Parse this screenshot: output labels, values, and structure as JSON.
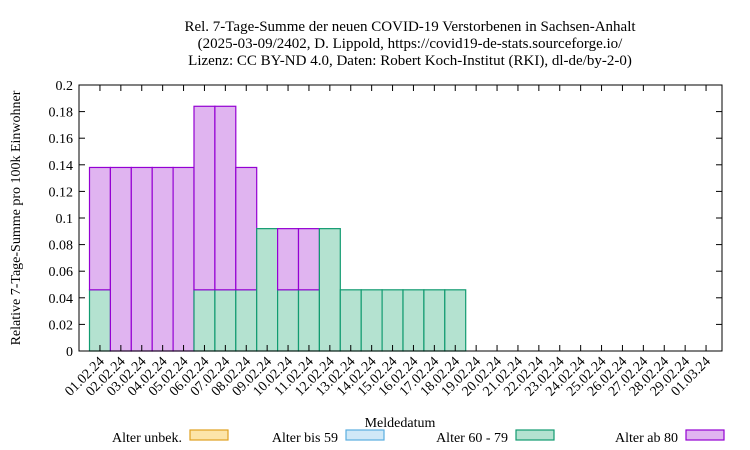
{
  "chart_data": {
    "type": "bar",
    "stacked": true,
    "title_lines": [
      "Rel. 7-Tage-Summe der neuen COVID-19 Verstorbenen in Sachsen-Anhalt",
      "(2025-03-09/2402, D. Lippold, https://covid19-de-stats.sourceforge.io/",
      "Lizenz: CC BY-ND 4.0, Daten: Robert Koch-Institut (RKI), dl-de/by-2-0)"
    ],
    "xlabel": "Meldedatum",
    "ylabel": "Relative 7-Tage-Summe pro 100k Einwohner",
    "ylim": [
      0,
      0.2
    ],
    "yticks": [
      0,
      0.02,
      0.04,
      0.06,
      0.08,
      0.1,
      0.12,
      0.14,
      0.16,
      0.18,
      0.2
    ],
    "ytick_labels": [
      "0",
      "0.02",
      "0.04",
      "0.06",
      "0.08",
      "0.1",
      "0.12",
      "0.14",
      "0.16",
      "0.18",
      "0.2"
    ],
    "grid": false,
    "legend_position": "bottom",
    "categories": [
      "01.02.24",
      "02.02.24",
      "03.02.24",
      "04.02.24",
      "05.02.24",
      "06.02.24",
      "07.02.24",
      "08.02.24",
      "09.02.24",
      "10.02.24",
      "11.02.24",
      "12.02.24",
      "13.02.24",
      "14.02.24",
      "15.02.24",
      "16.02.24",
      "17.02.24",
      "18.02.24",
      "19.02.24",
      "20.02.24",
      "21.02.24",
      "22.02.24",
      "23.02.24",
      "24.02.24",
      "25.02.24",
      "26.02.24",
      "27.02.24",
      "28.02.24",
      "29.02.24",
      "01.03.24"
    ],
    "series": [
      {
        "name": "Alter unbek.",
        "fill": "#fce4a8",
        "stroke": "#e0a020",
        "values": [
          0,
          0,
          0,
          0,
          0,
          0,
          0,
          0,
          0,
          0,
          0,
          0,
          0,
          0,
          0,
          0,
          0,
          0,
          0,
          0,
          0,
          0,
          0,
          0,
          0,
          0,
          0,
          0,
          0,
          0
        ]
      },
      {
        "name": "Alter bis 59",
        "fill": "#cfe8f7",
        "stroke": "#5aaee0",
        "values": [
          0,
          0,
          0,
          0,
          0,
          0,
          0,
          0,
          0,
          0,
          0,
          0,
          0,
          0,
          0,
          0,
          0,
          0,
          0,
          0,
          0,
          0,
          0,
          0,
          0,
          0,
          0,
          0,
          0,
          0
        ]
      },
      {
        "name": "Alter 60 - 79",
        "fill": "#b4e2d0",
        "stroke": "#119b70",
        "values": [
          0.046,
          0,
          0,
          0,
          0,
          0.046,
          0.046,
          0.046,
          0.092,
          0.046,
          0.046,
          0.092,
          0.046,
          0.046,
          0.046,
          0.046,
          0.046,
          0.046,
          0,
          0,
          0,
          0,
          0,
          0,
          0,
          0,
          0,
          0,
          0,
          0
        ]
      },
      {
        "name": "Alter ab 80",
        "fill": "#e0b4f0",
        "stroke": "#9400d3",
        "values": [
          0.092,
          0.138,
          0.138,
          0.138,
          0.138,
          0.138,
          0.138,
          0.092,
          0,
          0.046,
          0.046,
          0,
          0,
          0,
          0,
          0,
          0,
          0,
          0,
          0,
          0,
          0,
          0,
          0,
          0,
          0,
          0,
          0,
          0,
          0
        ]
      }
    ]
  }
}
